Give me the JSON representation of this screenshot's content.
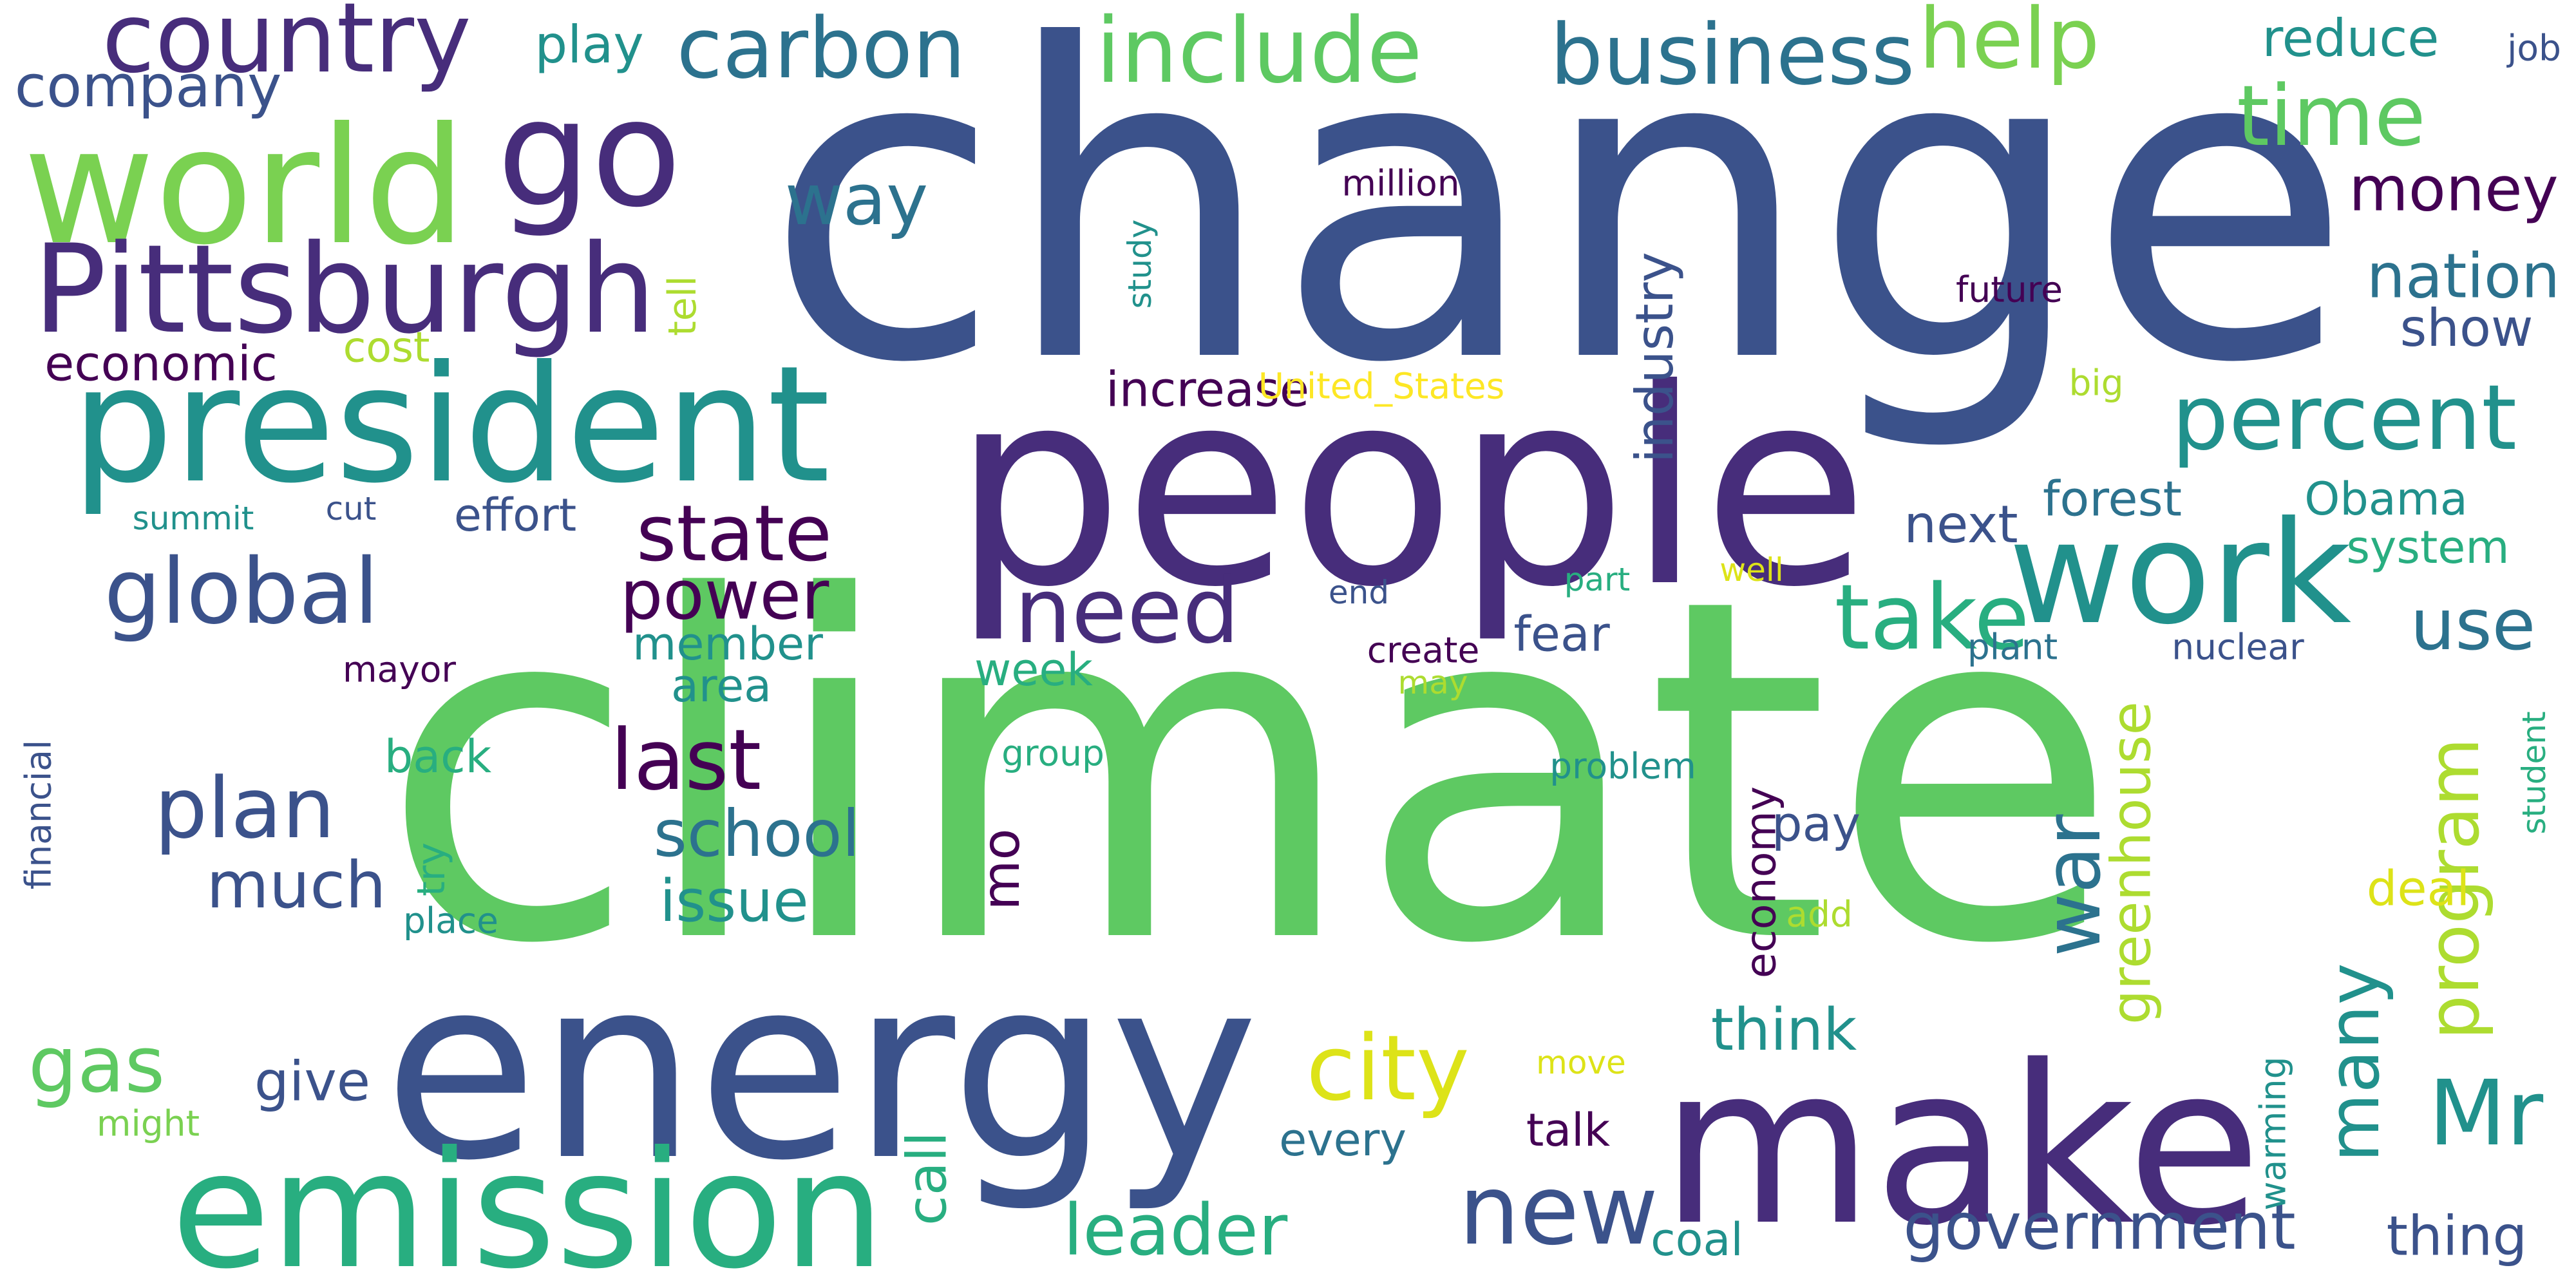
{
  "palette": [
    "#440154",
    "#472d7b",
    "#3b528b",
    "#2c728e",
    "#21918c",
    "#28ae80",
    "#5ec962",
    "#addc30",
    "#fde725"
  ],
  "words": [
    {
      "text": "climate",
      "color": "#5ec962"
    },
    {
      "text": "change",
      "color": "#3b528b"
    },
    {
      "text": "people",
      "color": "#472d7b"
    },
    {
      "text": "energy",
      "color": "#3b528b"
    },
    {
      "text": "make",
      "color": "#472d7b"
    },
    {
      "text": "emission",
      "color": "#28ae80"
    },
    {
      "text": "president",
      "color": "#21918c"
    },
    {
      "text": "world",
      "color": "#7ad151"
    },
    {
      "text": "work",
      "color": "#21918c"
    },
    {
      "text": "go",
      "color": "#472d7b"
    },
    {
      "text": "Pittsburgh",
      "color": "#472d7b"
    },
    {
      "text": "country",
      "color": "#472d7b"
    },
    {
      "text": "carbon",
      "color": "#2c728e"
    },
    {
      "text": "include",
      "color": "#5ec962"
    },
    {
      "text": "business",
      "color": "#2c728e"
    },
    {
      "text": "help",
      "color": "#7ad151"
    },
    {
      "text": "time",
      "color": "#5ec962"
    },
    {
      "text": "percent",
      "color": "#21918c"
    },
    {
      "text": "take",
      "color": "#28ae80"
    },
    {
      "text": "need",
      "color": "#472d7b"
    },
    {
      "text": "global",
      "color": "#3b528b"
    },
    {
      "text": "plan",
      "color": "#3b528b"
    },
    {
      "text": "last",
      "color": "#440154"
    },
    {
      "text": "state",
      "color": "#440154"
    },
    {
      "text": "city",
      "color": "#dde318"
    },
    {
      "text": "new",
      "color": "#3b528b"
    },
    {
      "text": "Mr",
      "color": "#21918c"
    },
    {
      "text": "leader",
      "color": "#28ae80"
    },
    {
      "text": "government",
      "color": "#3b528b"
    },
    {
      "text": "gas",
      "color": "#5ec962"
    },
    {
      "text": "much",
      "color": "#3b528b"
    },
    {
      "text": "power",
      "color": "#440154"
    },
    {
      "text": "use",
      "color": "#2c728e"
    },
    {
      "text": "war",
      "color": "#2c728e"
    },
    {
      "text": "many",
      "color": "#21918c"
    },
    {
      "text": "program",
      "color": "#addc30"
    },
    {
      "text": "greenhouse",
      "color": "#addc30"
    },
    {
      "text": "way",
      "color": "#2c728e"
    },
    {
      "text": "money",
      "color": "#440154"
    },
    {
      "text": "nation",
      "color": "#2c728e"
    },
    {
      "text": "industry",
      "color": "#3b528b"
    },
    {
      "text": "company",
      "color": "#3b528b"
    },
    {
      "text": "play",
      "color": "#21918c"
    },
    {
      "text": "reduce",
      "color": "#21918c"
    },
    {
      "text": "job",
      "color": "#3b528b"
    },
    {
      "text": "school",
      "color": "#2c728e"
    },
    {
      "text": "issue",
      "color": "#21918c"
    },
    {
      "text": "economy",
      "color": "#440154"
    },
    {
      "text": "give",
      "color": "#3b528b"
    },
    {
      "text": "think",
      "color": "#21918c"
    },
    {
      "text": "thing",
      "color": "#3b528b"
    },
    {
      "text": "Obama",
      "color": "#21918c"
    },
    {
      "text": "next",
      "color": "#3b528b"
    },
    {
      "text": "forest",
      "color": "#2c728e"
    },
    {
      "text": "system",
      "color": "#28ae80"
    },
    {
      "text": "show",
      "color": "#3b528b"
    },
    {
      "text": "economic",
      "color": "#440154"
    },
    {
      "text": "increase",
      "color": "#440154"
    },
    {
      "text": "effort",
      "color": "#3b528b"
    },
    {
      "text": "back",
      "color": "#28ae80"
    },
    {
      "text": "member",
      "color": "#21918c"
    },
    {
      "text": "area",
      "color": "#21918c"
    },
    {
      "text": "fear",
      "color": "#3b528b"
    },
    {
      "text": "pay",
      "color": "#3b528b"
    },
    {
      "text": "deal",
      "color": "#dde318"
    },
    {
      "text": "talk",
      "color": "#440154"
    },
    {
      "text": "every",
      "color": "#2c728e"
    },
    {
      "text": "coal",
      "color": "#21918c"
    },
    {
      "text": "call",
      "color": "#28ae80"
    },
    {
      "text": "mo",
      "color": "#440154"
    },
    {
      "text": "financial",
      "color": "#3b528b"
    },
    {
      "text": "warming",
      "color": "#21918c"
    },
    {
      "text": "student",
      "color": "#28ae80"
    },
    {
      "text": "cost",
      "color": "#addc30"
    },
    {
      "text": "tell",
      "color": "#addc30"
    },
    {
      "text": "study",
      "color": "#21918c"
    },
    {
      "text": "million",
      "color": "#440154"
    },
    {
      "text": "future",
      "color": "#440154"
    },
    {
      "text": "United_States",
      "color": "#fde725"
    },
    {
      "text": "big",
      "color": "#addc30"
    },
    {
      "text": "summit",
      "color": "#21918c"
    },
    {
      "text": "cut",
      "color": "#3b528b"
    },
    {
      "text": "week",
      "color": "#28ae80"
    },
    {
      "text": "group",
      "color": "#28ae80"
    },
    {
      "text": "mayor",
      "color": "#440154"
    },
    {
      "text": "end",
      "color": "#3b528b"
    },
    {
      "text": "create",
      "color": "#440154"
    },
    {
      "text": "part",
      "color": "#28ae80"
    },
    {
      "text": "well",
      "color": "#dde318"
    },
    {
      "text": "may",
      "color": "#addc30"
    },
    {
      "text": "plant",
      "color": "#2c728e"
    },
    {
      "text": "nuclear",
      "color": "#3b528b"
    },
    {
      "text": "problem",
      "color": "#21918c"
    },
    {
      "text": "try",
      "color": "#28ae80"
    },
    {
      "text": "place",
      "color": "#21918c"
    },
    {
      "text": "add",
      "color": "#addc30"
    },
    {
      "text": "move",
      "color": "#dde318"
    },
    {
      "text": "might",
      "color": "#7ad151"
    }
  ]
}
